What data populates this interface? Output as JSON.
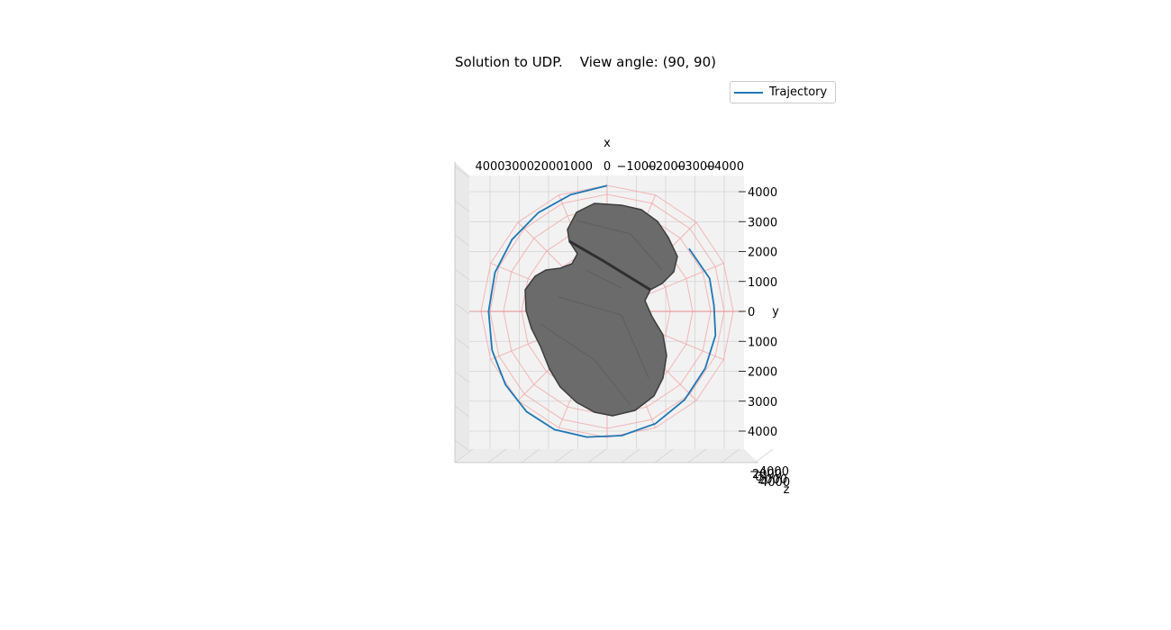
{
  "chart_data": {
    "type": "line",
    "title": "Solution to UDP.    View angle: (90, 90)",
    "xlabel": "x",
    "ylabel": "y",
    "zlabel": "z",
    "x_ticks": [
      "4000",
      "3000",
      "2000",
      "1000",
      "0",
      "−1000",
      "−2000",
      "−3000",
      "−4000"
    ],
    "y_ticks": [
      "4000",
      "3000",
      "2000",
      "1000",
      "0",
      "1000",
      "2000",
      "3000",
      "4000"
    ],
    "z_ticks": [
      "−4000",
      "2000",
      "0",
      "2000",
      "4000"
    ],
    "xlim": [
      4000,
      -4000
    ],
    "ylim": [
      4000,
      -4000
    ],
    "grid": true,
    "legend": "top-right",
    "colors": {
      "trajectory": "#1f77b4",
      "body": "#6b6b6b",
      "body_edge": "#3d3d3d",
      "mesh": "#f4a6a6",
      "pane": "#f2f2f2",
      "grid": "#d4d4d4"
    },
    "series": [
      {
        "name": "Trajectory",
        "x": [
          0,
          1250,
          2350,
          3250,
          3830,
          4050,
          3930,
          3470,
          2750,
          1800,
          700,
          -500,
          -1650,
          -2650,
          -3350,
          -3700,
          -3650,
          -3500,
          -2800
        ],
        "y": [
          -4200,
          -3900,
          -3300,
          -2400,
          -1300,
          0,
          1300,
          2450,
          3350,
          3950,
          4200,
          4150,
          3750,
          2950,
          1900,
          800,
          -200,
          -1100,
          -2100
        ]
      }
    ]
  }
}
